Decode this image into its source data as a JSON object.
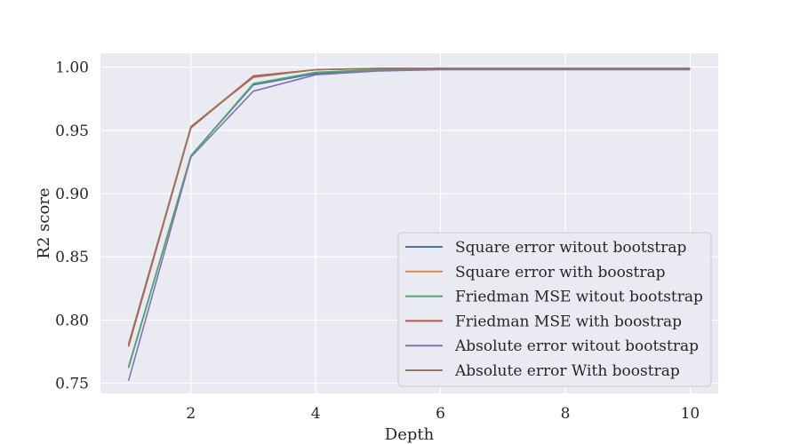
{
  "chart_data": {
    "type": "line",
    "title": "",
    "xlabel": "Depth",
    "ylabel": "R2 score",
    "xlim": [
      0.55,
      10.45
    ],
    "ylim": [
      0.742,
      1.011
    ],
    "xticks": [
      2,
      4,
      6,
      8,
      10
    ],
    "yticks": [
      0.75,
      0.8,
      0.85,
      0.9,
      0.95,
      1.0
    ],
    "ytick_labels": [
      "0.75",
      "0.80",
      "0.85",
      "0.90",
      "0.95",
      "1.00"
    ],
    "grid": true,
    "legend_position": "lower-right",
    "x": [
      1,
      2,
      3,
      4,
      5,
      6,
      7,
      8,
      9,
      10
    ],
    "series": [
      {
        "name": "Square error witout bootstrap",
        "color": "#4c72b0",
        "values": [
          0.763,
          0.93,
          0.986,
          0.995,
          0.998,
          0.999,
          0.999,
          0.999,
          0.999,
          0.999
        ]
      },
      {
        "name": "Square error with boostrap",
        "color": "#dd8452",
        "values": [
          0.78,
          0.953,
          0.993,
          0.998,
          0.999,
          0.999,
          0.999,
          0.999,
          0.999,
          0.999
        ]
      },
      {
        "name": "Friedman MSE witout bootstrap",
        "color": "#55a868",
        "values": [
          0.762,
          0.93,
          0.987,
          0.996,
          0.998,
          0.999,
          0.999,
          0.999,
          0.999,
          0.999
        ]
      },
      {
        "name": "Friedman MSE with boostrap",
        "color": "#c44e52",
        "values": [
          0.779,
          0.952,
          0.993,
          0.998,
          0.999,
          0.999,
          0.999,
          0.999,
          0.999,
          0.999
        ]
      },
      {
        "name": "Absolute error witout bootstrap",
        "color": "#8172b3",
        "values": [
          0.752,
          0.929,
          0.981,
          0.994,
          0.997,
          0.998,
          0.998,
          0.998,
          0.998,
          0.998
        ]
      },
      {
        "name": "Absolute error With boostrap",
        "color": "#937860",
        "values": [
          0.781,
          0.953,
          0.992,
          0.998,
          0.999,
          0.999,
          0.999,
          0.999,
          0.999,
          0.999
        ]
      }
    ]
  }
}
